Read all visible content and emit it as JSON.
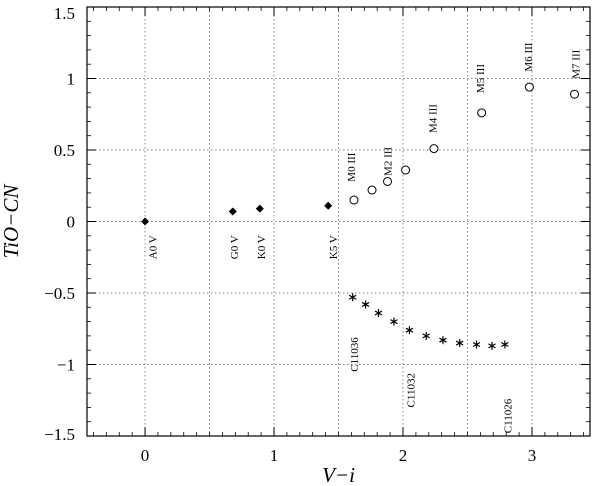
{
  "chart_data": {
    "type": "scatter",
    "xlabel": "V−i",
    "ylabel": "TiO−CN",
    "xlim": [
      -0.45,
      3.45
    ],
    "ylim": [
      -1.5,
      1.5
    ],
    "xticks": [
      0,
      1,
      2,
      3
    ],
    "xtick_labels": [
      "0",
      "1",
      "2",
      "3"
    ],
    "yticks": [
      -1.5,
      -1,
      -0.5,
      0,
      0.5,
      1,
      1.5
    ],
    "ytick_labels": [
      "−1.5",
      "−1",
      "−0.5",
      "0",
      "0.5",
      "1",
      "1.5"
    ],
    "grid": true,
    "series": [
      {
        "marker": "filled-diamond",
        "points": [
          {
            "x": 0.0,
            "y": 0.0
          },
          {
            "x": 0.68,
            "y": 0.07
          },
          {
            "x": 0.89,
            "y": 0.09
          },
          {
            "x": 1.42,
            "y": 0.11
          }
        ]
      },
      {
        "marker": "open-circle",
        "points": [
          {
            "x": 1.62,
            "y": 0.15
          },
          {
            "x": 1.76,
            "y": 0.22
          },
          {
            "x": 1.88,
            "y": 0.28
          },
          {
            "x": 2.02,
            "y": 0.36
          },
          {
            "x": 2.24,
            "y": 0.51
          },
          {
            "x": 2.61,
            "y": 0.76
          },
          {
            "x": 2.98,
            "y": 0.94
          },
          {
            "x": 3.33,
            "y": 0.89
          }
        ]
      },
      {
        "marker": "asterisk",
        "points": [
          {
            "x": 1.61,
            "y": -0.53
          },
          {
            "x": 1.71,
            "y": -0.58
          },
          {
            "x": 1.81,
            "y": -0.64
          },
          {
            "x": 1.93,
            "y": -0.7
          },
          {
            "x": 2.05,
            "y": -0.76
          },
          {
            "x": 2.18,
            "y": -0.8
          },
          {
            "x": 2.31,
            "y": -0.83
          },
          {
            "x": 2.44,
            "y": -0.85
          },
          {
            "x": 2.57,
            "y": -0.86
          },
          {
            "x": 2.69,
            "y": -0.87
          },
          {
            "x": 2.79,
            "y": -0.86
          }
        ]
      }
    ],
    "annotations": [
      {
        "text": "A0 V",
        "x": 0.07,
        "y": -0.18
      },
      {
        "text": "G0 V",
        "x": 0.7,
        "y": -0.18
      },
      {
        "text": "K0 V",
        "x": 0.91,
        "y": -0.18
      },
      {
        "text": "K5 V",
        "x": 1.47,
        "y": -0.18
      },
      {
        "text": "M0 III",
        "x": 1.61,
        "y": 0.38
      },
      {
        "text": "M2 III",
        "x": 1.89,
        "y": 0.42
      },
      {
        "text": "M4 III",
        "x": 2.24,
        "y": 0.72
      },
      {
        "text": "M5 III",
        "x": 2.61,
        "y": 1.0
      },
      {
        "text": "M6 III",
        "x": 2.98,
        "y": 1.15
      },
      {
        "text": "M7 III",
        "x": 3.35,
        "y": 1.1
      },
      {
        "text": "C11036",
        "x": 1.63,
        "y": -0.93
      },
      {
        "text": "C11032",
        "x": 2.07,
        "y": -1.18
      },
      {
        "text": "C11026",
        "x": 2.82,
        "y": -1.36
      }
    ]
  }
}
